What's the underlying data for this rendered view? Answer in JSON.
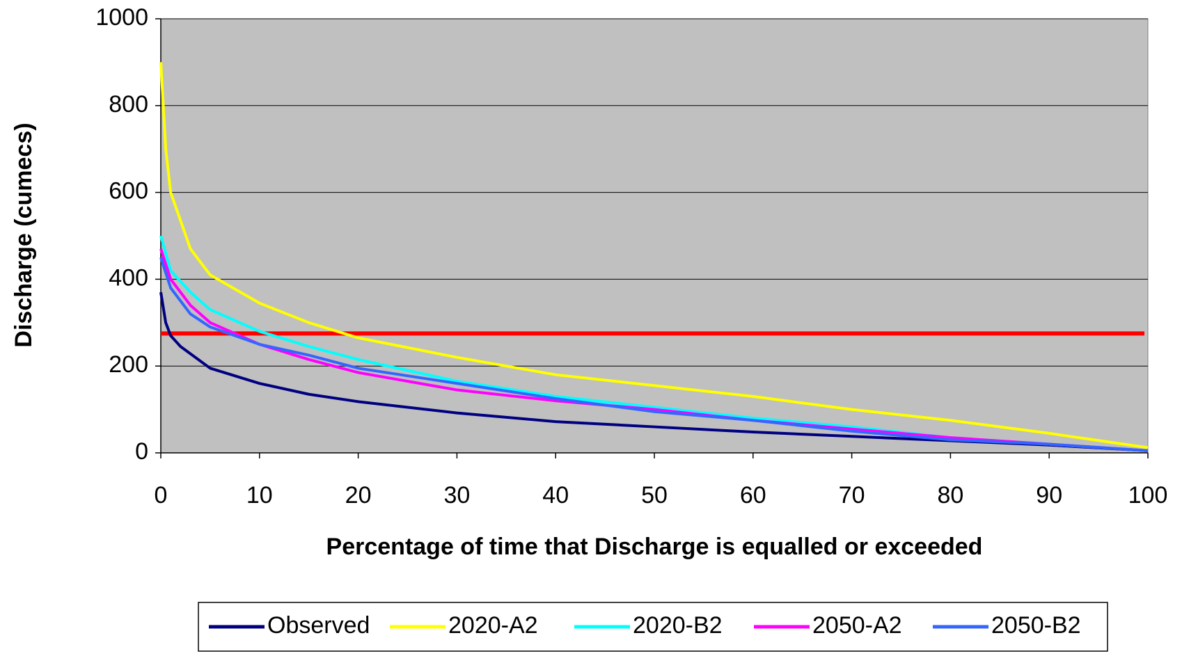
{
  "chart_data": {
    "type": "line",
    "xlabel": "Percentage of time that Discharge is equalled or exceeded",
    "ylabel": "Discharge (cumecs)",
    "xlim": [
      0,
      100
    ],
    "xticks": [
      0,
      10,
      20,
      30,
      40,
      50,
      60,
      70,
      80,
      90,
      100
    ],
    "ylim": [
      0,
      1000
    ],
    "yticks": [
      0,
      200,
      400,
      600,
      800,
      1000
    ],
    "grid": true,
    "background": "#c0c0c0",
    "legend": "bottom",
    "series": [
      {
        "name": "Observed",
        "color": "#000080",
        "x": [
          0,
          0.5,
          1,
          2,
          5,
          10,
          15,
          20,
          30,
          40,
          50,
          60,
          70,
          80,
          90,
          100
        ],
        "values": [
          370,
          300,
          270,
          245,
          195,
          160,
          135,
          118,
          92,
          72,
          60,
          48,
          38,
          28,
          18,
          5
        ]
      },
      {
        "name": "2020-A2",
        "color": "#ffff00",
        "x": [
          0,
          0.5,
          1,
          3,
          5,
          10,
          15,
          20,
          30,
          40,
          50,
          60,
          70,
          80,
          90,
          100
        ],
        "values": [
          900,
          700,
          600,
          470,
          410,
          345,
          300,
          265,
          220,
          180,
          155,
          130,
          100,
          75,
          45,
          12
        ]
      },
      {
        "name": "2020-B2",
        "color": "#00ffff",
        "x": [
          0,
          1,
          3,
          5,
          10,
          15,
          20,
          30,
          40,
          50,
          60,
          70,
          80,
          90,
          100
        ],
        "values": [
          500,
          420,
          370,
          330,
          280,
          245,
          215,
          165,
          130,
          105,
          80,
          60,
          35,
          20,
          5
        ]
      },
      {
        "name": "2050-A2",
        "color": "#ff00ff",
        "x": [
          0,
          1,
          3,
          5,
          10,
          15,
          20,
          30,
          40,
          50,
          60,
          70,
          80,
          90,
          100
        ],
        "values": [
          470,
          400,
          340,
          300,
          250,
          215,
          185,
          145,
          120,
          100,
          75,
          55,
          35,
          20,
          5
        ]
      },
      {
        "name": "2050-B2",
        "color": "#3366ff",
        "x": [
          0,
          1,
          3,
          5,
          10,
          15,
          20,
          30,
          40,
          50,
          60,
          70,
          80,
          90,
          100
        ],
        "values": [
          450,
          380,
          320,
          290,
          250,
          225,
          195,
          160,
          125,
          95,
          75,
          50,
          30,
          20,
          5
        ]
      }
    ],
    "hlines": [
      {
        "y": 275,
        "color": "#ff0000"
      }
    ]
  }
}
